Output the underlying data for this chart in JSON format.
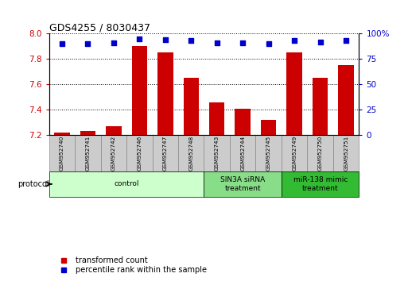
{
  "title": "GDS4255 / 8030437",
  "samples": [
    "GSM952740",
    "GSM952741",
    "GSM952742",
    "GSM952746",
    "GSM952747",
    "GSM952748",
    "GSM952743",
    "GSM952744",
    "GSM952745",
    "GSM952749",
    "GSM952750",
    "GSM952751"
  ],
  "transformed_counts": [
    7.22,
    7.23,
    7.27,
    7.9,
    7.85,
    7.65,
    7.46,
    7.41,
    7.32,
    7.85,
    7.65,
    7.75
  ],
  "percentile_ranks": [
    90,
    90,
    91,
    95,
    94,
    93,
    91,
    91,
    90,
    93,
    92,
    93
  ],
  "bar_color": "#cc0000",
  "dot_color": "#0000cc",
  "ylim_left": [
    7.2,
    8.0
  ],
  "ylim_right": [
    0,
    100
  ],
  "yticks_left": [
    7.2,
    7.4,
    7.6,
    7.8,
    8.0
  ],
  "yticks_right": [
    0,
    25,
    50,
    75,
    100
  ],
  "protocol_groups": [
    {
      "label": "control",
      "start": 0,
      "end": 5,
      "color": "#ccffcc"
    },
    {
      "label": "SIN3A siRNA\ntreatment",
      "start": 6,
      "end": 8,
      "color": "#88dd88"
    },
    {
      "label": "miR-138 mimic\ntreatment",
      "start": 9,
      "end": 11,
      "color": "#33bb33"
    }
  ],
  "protocol_label": "protocol",
  "legend_items": [
    {
      "label": "transformed count",
      "color": "#cc0000"
    },
    {
      "label": "percentile rank within the sample",
      "color": "#0000cc"
    }
  ],
  "bar_color_tick": "#cc0000",
  "right_tick_label_color": "#0000cc",
  "sample_box_color": "#cccccc",
  "sample_box_edge": "#888888"
}
